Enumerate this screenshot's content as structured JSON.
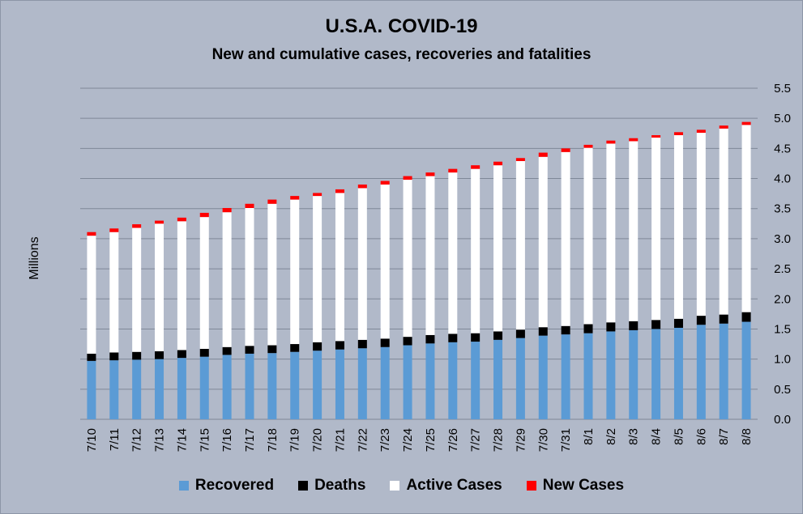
{
  "chart_data": {
    "type": "bar",
    "stacked": true,
    "title": "U.S.A. COVID-19",
    "subtitle": "New and cumulative cases, recoveries and fatalities",
    "ylabel": "Millions",
    "xlabel": "",
    "ylim": [
      0,
      5.5
    ],
    "yticks": [
      "0.0",
      "0.5",
      "1.0",
      "1.5",
      "2.0",
      "2.5",
      "3.0",
      "3.5",
      "4.0",
      "4.5",
      "5.0",
      "5.5"
    ],
    "y_axis_side": "right",
    "grid": true,
    "legend_position": "bottom",
    "categories": [
      "7/10",
      "7/11",
      "7/12",
      "7/13",
      "7/14",
      "7/15",
      "7/16",
      "7/17",
      "7/18",
      "7/19",
      "7/20",
      "7/21",
      "7/22",
      "7/23",
      "7/24",
      "7/25",
      "7/26",
      "7/27",
      "7/28",
      "7/29",
      "7/30",
      "7/31",
      "8/1",
      "8/2",
      "8/3",
      "8/4",
      "8/5",
      "8/6",
      "8/7",
      "8/8"
    ],
    "series": [
      {
        "name": "Recovered",
        "color": "#5b9bd5",
        "values": [
          0.97,
          0.98,
          0.99,
          1.0,
          1.02,
          1.04,
          1.07,
          1.09,
          1.1,
          1.12,
          1.14,
          1.16,
          1.18,
          1.2,
          1.23,
          1.26,
          1.28,
          1.29,
          1.32,
          1.35,
          1.39,
          1.41,
          1.43,
          1.46,
          1.48,
          1.5,
          1.52,
          1.57,
          1.59,
          1.62
        ]
      },
      {
        "name": "Deaths",
        "color": "#000000",
        "values": [
          0.12,
          0.13,
          0.13,
          0.13,
          0.13,
          0.13,
          0.13,
          0.13,
          0.13,
          0.13,
          0.14,
          0.14,
          0.14,
          0.14,
          0.14,
          0.14,
          0.14,
          0.14,
          0.14,
          0.14,
          0.14,
          0.14,
          0.15,
          0.15,
          0.15,
          0.15,
          0.15,
          0.15,
          0.15,
          0.16
        ]
      },
      {
        "name": "Active Cases",
        "color": "#ffffff",
        "values": [
          1.96,
          2.0,
          2.06,
          2.12,
          2.14,
          2.19,
          2.24,
          2.29,
          2.35,
          2.4,
          2.43,
          2.46,
          2.52,
          2.56,
          2.61,
          2.64,
          2.68,
          2.73,
          2.76,
          2.8,
          2.83,
          2.89,
          2.93,
          2.97,
          2.99,
          3.03,
          3.05,
          3.04,
          3.09,
          3.11
        ]
      },
      {
        "name": "New Cases",
        "color": "#ff0000",
        "values": [
          0.06,
          0.06,
          0.06,
          0.05,
          0.06,
          0.07,
          0.07,
          0.07,
          0.07,
          0.06,
          0.05,
          0.06,
          0.06,
          0.06,
          0.06,
          0.06,
          0.06,
          0.06,
          0.06,
          0.05,
          0.07,
          0.06,
          0.05,
          0.05,
          0.05,
          0.04,
          0.05,
          0.05,
          0.05,
          0.05
        ]
      }
    ]
  }
}
